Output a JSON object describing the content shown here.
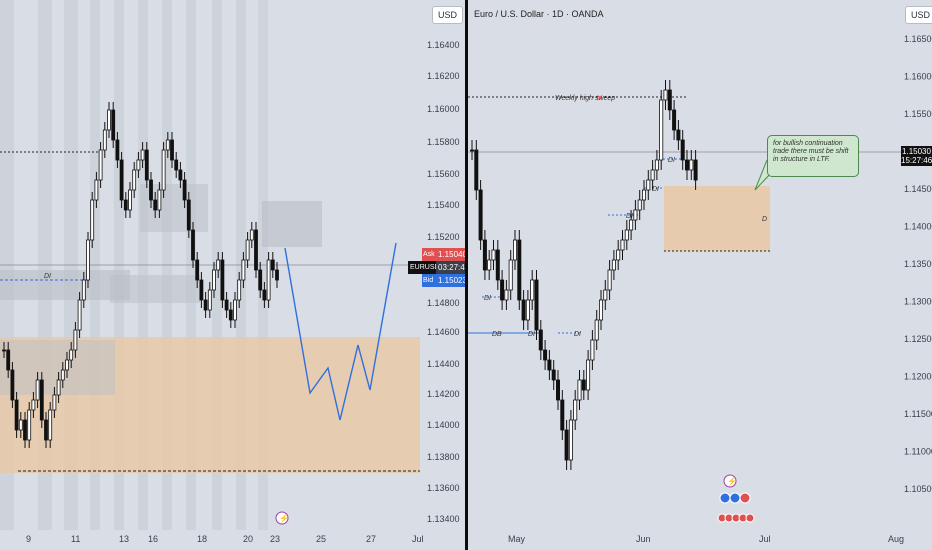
{
  "left": {
    "axis_label": "USD",
    "y_ticks": [
      "1.16400",
      "1.16200",
      "1.16000",
      "1.15800",
      "1.15600",
      "1.15400",
      "1.15200",
      "1.14800",
      "1.14600",
      "1.14400",
      "1.14200",
      "1.14000",
      "1.13800",
      "1.13600",
      "1.13400"
    ],
    "x_ticks": [
      "9",
      "11",
      "13",
      "16",
      "18",
      "20",
      "23",
      "25",
      "27",
      "Jul"
    ],
    "ask_label": "Ask",
    "ask_value": "1.15040",
    "symbol": "EURUSD",
    "countdown": "03:27:46",
    "bid_label": "Bid",
    "bid_value": "1.15023",
    "di_label": "DI",
    "lightning_icon": "lightning-icon",
    "colors": {
      "zone": "#e8c9a8",
      "projection": "#2f6fe0",
      "ask": "#e05050",
      "bid": "#2f6fe0"
    }
  },
  "right": {
    "title": "Euro / U.S. Dollar · 1D · OANDA",
    "axis_label": "USD",
    "y_ticks": [
      "1.16500",
      "1.16000",
      "1.15500",
      "1.14500",
      "1.14000",
      "1.13500",
      "1.13000",
      "1.12500",
      "1.12000",
      "1.11500",
      "1.11000",
      "1.10500"
    ],
    "x_ticks": [
      "May",
      "Jun",
      "Jul",
      "Aug"
    ],
    "price_value": "1.15030",
    "price_countdown": "15:27:46",
    "sweep_label": "Weekly high sweep",
    "sweep_mark": "✕",
    "note": "for bullish continuation trade there must be shift in structure in LTF.",
    "labels": {
      "di": "DI",
      "db": "DB",
      "d": "D"
    },
    "events_icon": "calendar-events-icon",
    "colors": {
      "zone": "#e8c9a8",
      "note_bg": "#cfe6cf",
      "note_border": "#4a8a4a",
      "db_line": "#2f6fe0"
    }
  }
}
